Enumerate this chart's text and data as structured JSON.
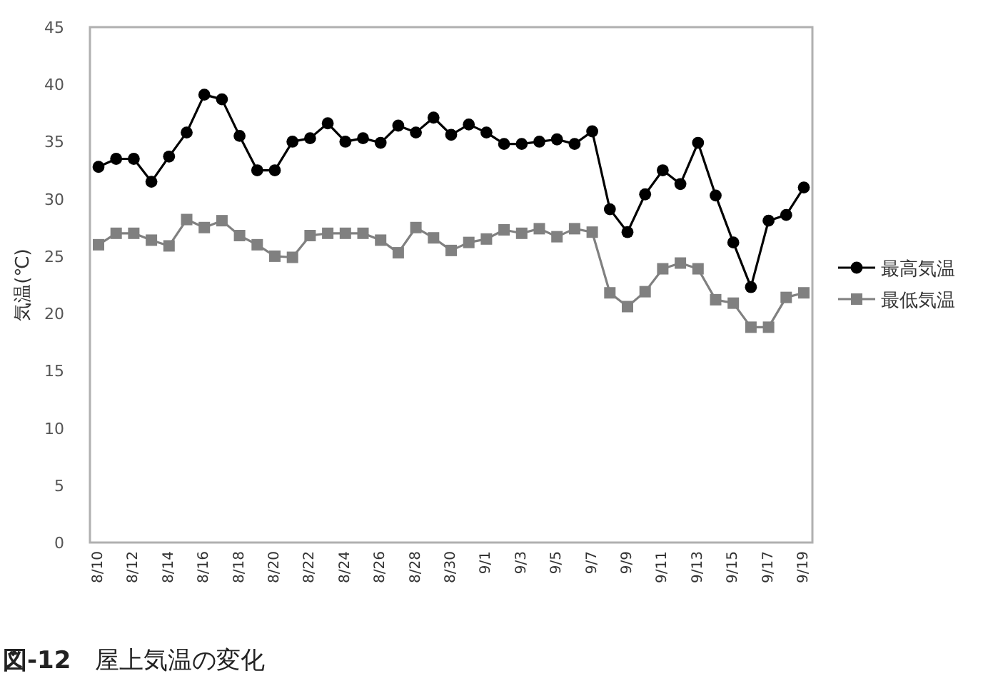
{
  "chart_data": {
    "type": "line",
    "title": "図-12　屋上気温の変化",
    "ylabel": "気温(℃)",
    "categories": [
      "8/10",
      null,
      "8/12",
      null,
      "8/14",
      null,
      "8/16",
      null,
      "8/18",
      null,
      "8/20",
      null,
      "8/22",
      null,
      "8/24",
      null,
      "8/26",
      null,
      "8/28",
      null,
      "8/30",
      null,
      "9/1",
      null,
      "9/3",
      null,
      "9/5",
      null,
      "9/7",
      null,
      "9/9",
      null,
      "9/11",
      null,
      "9/13",
      null,
      "9/15",
      null,
      "9/17",
      null,
      "9/19"
    ],
    "series": [
      {
        "name": "最高気温",
        "color": "#000000",
        "marker": "circle",
        "values": [
          32.8,
          33.5,
          33.5,
          31.5,
          33.7,
          35.8,
          39.1,
          38.7,
          35.5,
          32.5,
          32.5,
          35.0,
          35.3,
          36.6,
          35.0,
          35.3,
          34.9,
          36.4,
          35.8,
          37.1,
          35.6,
          36.5,
          35.8,
          34.8,
          34.8,
          35.0,
          35.2,
          34.8,
          35.9,
          29.1,
          27.1,
          30.4,
          32.5,
          31.3,
          34.9,
          30.3,
          26.2,
          22.3,
          28.1,
          28.6,
          31.0
        ]
      },
      {
        "name": "最低気温",
        "color": "#808080",
        "marker": "square",
        "values": [
          26.0,
          27.0,
          27.0,
          26.4,
          25.9,
          28.2,
          27.5,
          28.1,
          26.8,
          26.0,
          25.0,
          24.9,
          26.8,
          27.0,
          27.0,
          27.0,
          26.4,
          25.3,
          27.5,
          26.6,
          25.5,
          26.2,
          26.5,
          27.3,
          27.0,
          27.4,
          26.7,
          27.4,
          27.1,
          21.8,
          20.6,
          21.9,
          23.9,
          24.4,
          23.9,
          21.2,
          20.9,
          18.8,
          18.8,
          21.4,
          21.8
        ]
      }
    ],
    "ylim": [
      0,
      45
    ],
    "yticks": [
      0,
      5,
      10,
      15,
      20,
      25,
      30,
      35,
      40,
      45
    ],
    "legend": "right"
  }
}
